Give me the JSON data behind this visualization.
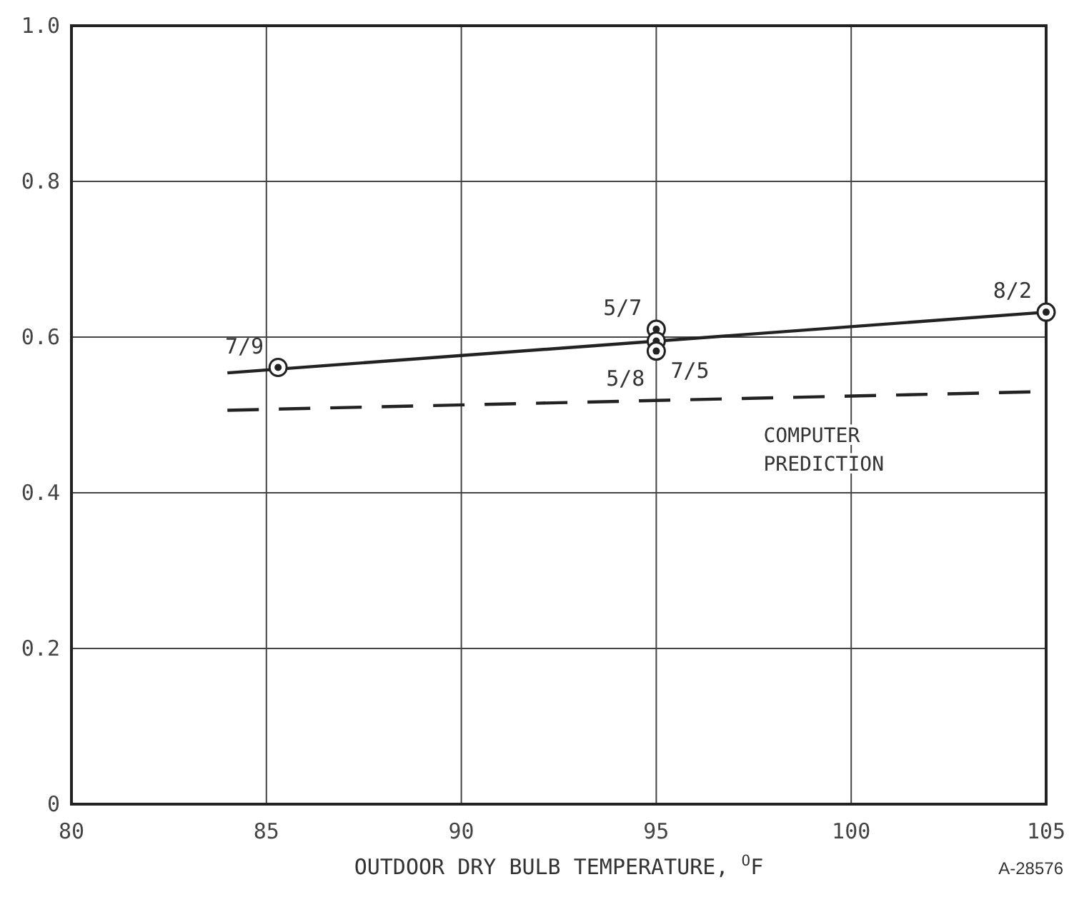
{
  "chart_data": {
    "type": "line",
    "xlabel": "OUTDOOR DRY BULB TEMPERATURE, $^{O}$F",
    "xlim": [
      80,
      105
    ],
    "xticks": [
      80,
      85,
      90,
      95,
      100,
      105
    ],
    "ylim": [
      0,
      1
    ],
    "yticks": [
      0,
      0.2,
      0.4,
      0.6,
      0.8,
      {
        "value": 1,
        "label": "1.0"
      }
    ],
    "grid": true,
    "series": [
      {
        "color": "#222222",
        "x": [
          84,
          105
        ],
        "values": [
          0.554,
          0.632
        ],
        "line_style": "solid"
      },
      {
        "color": "#222222",
        "x": [
          84,
          105
        ],
        "values": [
          0.506,
          0.53
        ],
        "line_style": "dashed"
      },
      {
        "type": "scatter",
        "color": "#222222",
        "x": [
          85.3,
          95,
          95,
          95,
          105
        ],
        "values": [
          0.561,
          0.61,
          0.595,
          0.582,
          0.632
        ],
        "marker": "circle"
      }
    ],
    "annotations": [
      {
        "text": "7/9",
        "x": 85.3,
        "y": 0.561
      },
      {
        "text": "5/7",
        "x": 95,
        "y": 0.61
      },
      {
        "text": "7/5",
        "x": 95,
        "y": 0.595
      },
      {
        "text": "5/8",
        "x": 95,
        "y": 0.582
      },
      {
        "text": "8/2",
        "x": 105,
        "y": 0.632
      },
      "COMPUTER PREDICTION",
      "A-28576"
    ]
  }
}
